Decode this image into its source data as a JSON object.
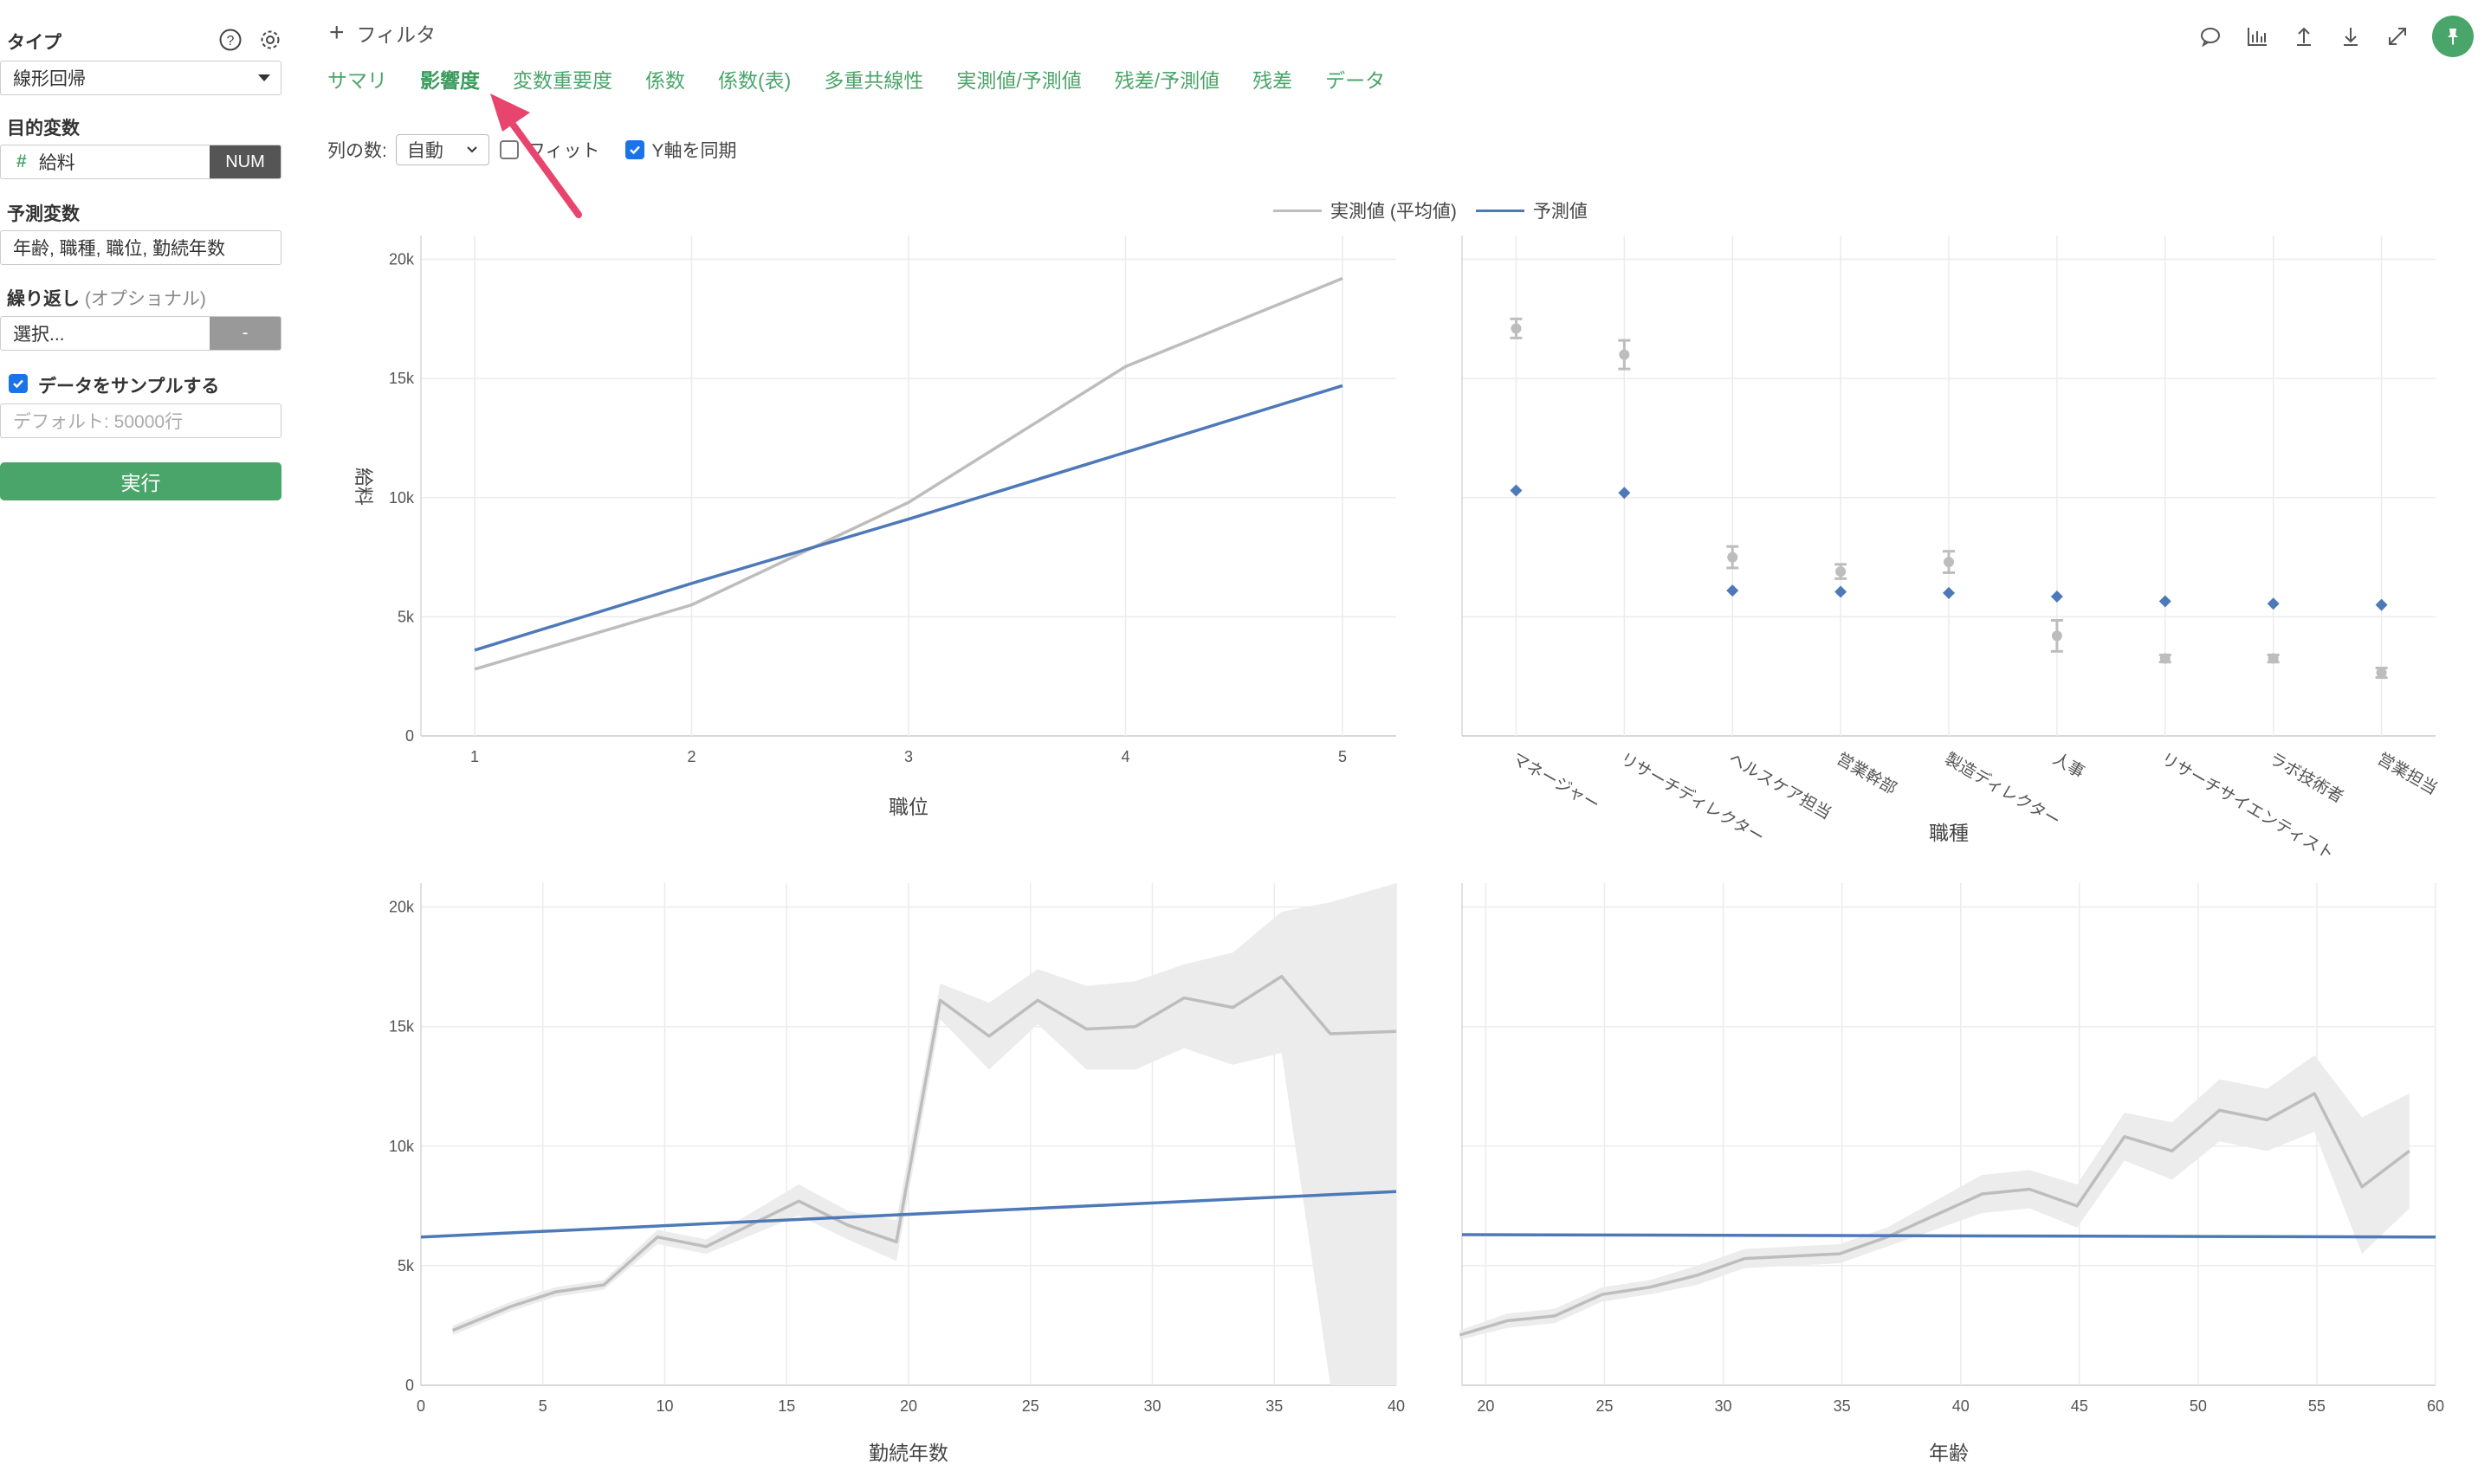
{
  "sidebar": {
    "type_label": "タイプ",
    "type_value": "線形回帰",
    "target_label": "目的変数",
    "target_hash": "#",
    "target_value": "給料",
    "target_badge": "NUM",
    "predictors_label": "予測変数",
    "predictors_value": "年齢, 職種, 職位, 勤続年数",
    "repeat_label": "繰り返し",
    "repeat_optional": "(オプショナル)",
    "repeat_placeholder": "選択...",
    "repeat_button": "-",
    "sample_label": "データをサンプルする",
    "sample_placeholder": "デフォルト: 50000行",
    "run_button": "実行"
  },
  "topbar": {
    "filter_plus": "+",
    "filter_label": "フィルタ"
  },
  "tabs": [
    {
      "label": "サマリ",
      "active": false
    },
    {
      "label": "影響度",
      "active": true
    },
    {
      "label": "変数重要度",
      "active": false
    },
    {
      "label": "係数",
      "active": false
    },
    {
      "label": "係数(表)",
      "active": false
    },
    {
      "label": "多重共線性",
      "active": false
    },
    {
      "label": "実測値/予測値",
      "active": false
    },
    {
      "label": "残差/予測値",
      "active": false
    },
    {
      "label": "残差",
      "active": false
    },
    {
      "label": "データ",
      "active": false
    }
  ],
  "options": {
    "columns_label": "列の数:",
    "columns_value": "自動",
    "fit_label": "フィット",
    "sync_y_label": "Y軸を同期"
  },
  "colors": {
    "accent": "#4aa56a",
    "actual": "#bdbdbd",
    "predicted": "#4e79b8",
    "band": "#ececec",
    "arrow": "#e8456e"
  },
  "legend": {
    "actual": "実測値 (平均値)",
    "predicted": "予測値"
  },
  "chart_data": [
    {
      "type": "line",
      "xlabel": "職位",
      "ylabel": "給料",
      "x": [
        1,
        2,
        3,
        4,
        5
      ],
      "xticks": [
        "1",
        "2",
        "3",
        "4",
        "5"
      ],
      "ylim": [
        0,
        21000
      ],
      "yticks": [
        "0",
        "5k",
        "10k",
        "15k",
        "20k"
      ],
      "series": [
        {
          "name": "実測値 (平均値)",
          "values": [
            2800,
            5500,
            9800,
            15500,
            19200
          ]
        },
        {
          "name": "予測値",
          "values": [
            3600,
            6400,
            9100,
            11900,
            14700
          ]
        }
      ]
    },
    {
      "type": "scatter",
      "xlabel": "職種",
      "categories": [
        "マネージャー",
        "リサーチディレクター",
        "ヘルスケア担当",
        "営業幹部",
        "製造ディレクター",
        "人事",
        "リサーチサイエンティスト",
        "ラボ技術者",
        "営業担当"
      ],
      "ylim": [
        0,
        21000
      ],
      "series": [
        {
          "name": "実測値 (平均値)",
          "values": [
            17100,
            16000,
            7500,
            6900,
            7300,
            4200,
            3250,
            3250,
            2650
          ],
          "error": [
            400,
            600,
            450,
            300,
            450,
            650,
            150,
            150,
            200
          ]
        },
        {
          "name": "予測値",
          "values": [
            10300,
            10200,
            6100,
            6050,
            6000,
            5850,
            5650,
            5550,
            5500
          ]
        }
      ]
    },
    {
      "type": "line",
      "xlabel": "勤続年数",
      "xlim": [
        0,
        40
      ],
      "xticks": [
        "0",
        "5",
        "10",
        "15",
        "20",
        "25",
        "30",
        "35",
        "40"
      ],
      "ylim": [
        0,
        21000
      ],
      "yticks": [
        "0",
        "5k",
        "10k",
        "15k",
        "20k"
      ],
      "series": [
        {
          "name": "実測値 (平均値)",
          "x": [
            1.3,
            3.7,
            5.5,
            7.5,
            9.7,
            11.7,
            15.5,
            17.5,
            19.5,
            21.3,
            23.3,
            25.3,
            27.3,
            29.3,
            31.3,
            33.3,
            35.3,
            37.3,
            40
          ],
          "values": [
            2300,
            3300,
            3900,
            4200,
            6200,
            5800,
            7700,
            6700,
            6000,
            16100,
            14600,
            16100,
            14900,
            15000,
            16200,
            15800,
            17100,
            14700,
            14800
          ],
          "band_low": [
            2100,
            3100,
            3700,
            4000,
            5900,
            5500,
            7100,
            6100,
            5200,
            15300,
            13200,
            15100,
            13200,
            13200,
            14100,
            13400,
            13900,
            0,
            0
          ],
          "band_high": [
            2500,
            3500,
            4100,
            4400,
            6500,
            6100,
            8400,
            7300,
            6900,
            16800,
            16000,
            17400,
            16700,
            16900,
            17600,
            18100,
            19800,
            20200,
            21000
          ]
        },
        {
          "name": "予測値",
          "x": [
            0,
            40
          ],
          "values": [
            6200,
            8100
          ]
        }
      ]
    },
    {
      "type": "line",
      "xlabel": "年齢",
      "xlim": [
        19,
        60
      ],
      "xticks": [
        "20",
        "25",
        "30",
        "35",
        "40",
        "45",
        "50",
        "55",
        "60"
      ],
      "ylim": [
        0,
        21000
      ],
      "series": [
        {
          "name": "実測値 (平均値)",
          "x": [
            18.9,
            20.9,
            22.9,
            24.9,
            26.9,
            28.9,
            30.9,
            32.9,
            34.9,
            36.9,
            38.9,
            40.9,
            42.9,
            44.9,
            46.9,
            48.9,
            50.9,
            52.9,
            54.9,
            56.9,
            58.9
          ],
          "values": [
            2100,
            2700,
            2900,
            3800,
            4100,
            4600,
            5300,
            5400,
            5500,
            6200,
            7100,
            8000,
            8200,
            7500,
            10400,
            9800,
            11500,
            11100,
            12200,
            8300,
            9800
          ],
          "band_low": [
            1900,
            2400,
            2600,
            3500,
            3800,
            4200,
            4900,
            5000,
            5100,
            5800,
            6500,
            7200,
            7400,
            6600,
            9400,
            8600,
            10200,
            9800,
            10600,
            5500,
            7400
          ],
          "band_high": [
            2300,
            3000,
            3200,
            4100,
            4400,
            5000,
            5700,
            5800,
            5900,
            6600,
            7700,
            8800,
            9000,
            8400,
            11400,
            11000,
            12800,
            12400,
            13800,
            11200,
            12200
          ]
        },
        {
          "name": "予測値",
          "x": [
            19,
            60
          ],
          "values": [
            6300,
            6200
          ]
        }
      ]
    }
  ]
}
